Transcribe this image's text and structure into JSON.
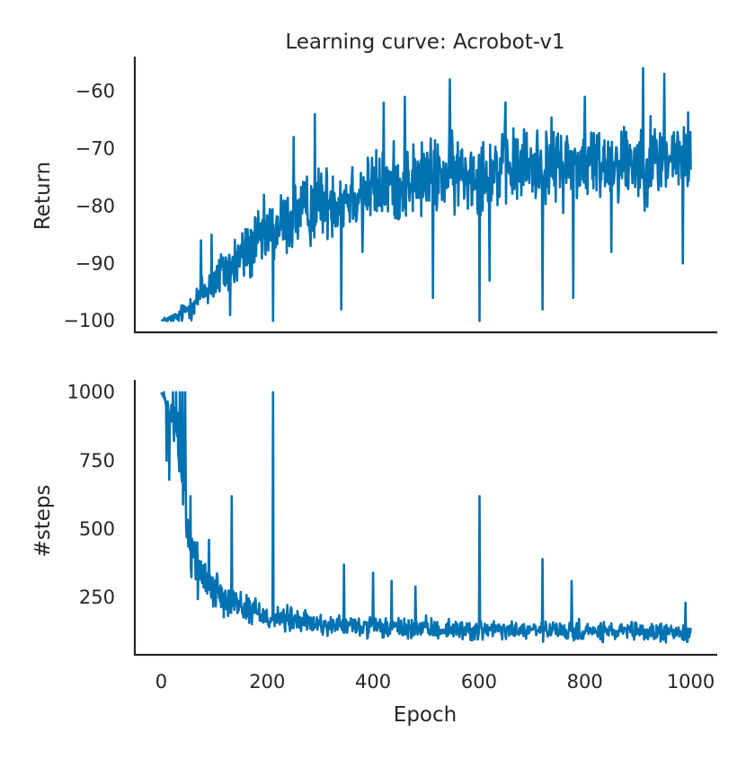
{
  "chart_data": [
    {
      "type": "line",
      "title": "Learning curve: Acrobot-v1",
      "xlabel": "",
      "ylabel": "Return",
      "xlim": [
        -50,
        1050
      ],
      "ylim": [
        -102,
        -54
      ],
      "xticks": [
        0,
        200,
        400,
        600,
        800,
        1000
      ],
      "show_xticklabels": false,
      "yticks": [
        -100,
        -90,
        -80,
        -70,
        -60
      ],
      "ytick_labels": [
        "−100",
        "−90",
        "−80",
        "−70",
        "−60"
      ],
      "grid": false,
      "color": "#0072B2",
      "trend": {
        "x": [
          0,
          30,
          60,
          100,
          150,
          200,
          250,
          300,
          400,
          500,
          600,
          700,
          800,
          900,
          1000
        ],
        "y": [
          -100,
          -99.5,
          -97,
          -93,
          -89,
          -85,
          -82,
          -79.5,
          -77,
          -75,
          -74,
          -73,
          -72.5,
          -72,
          -71.5
        ]
      },
      "noise_amplitude": {
        "x": [
          0,
          40,
          100,
          200,
          400,
          1000
        ],
        "y": [
          0.3,
          1.5,
          4,
          5.5,
          6,
          6.5
        ]
      },
      "spikes": [
        {
          "x": 75,
          "y": -86
        },
        {
          "x": 95,
          "y": -85
        },
        {
          "x": 130,
          "y": -99
        },
        {
          "x": 211,
          "y": -100
        },
        {
          "x": 250,
          "y": -68
        },
        {
          "x": 290,
          "y": -64
        },
        {
          "x": 340,
          "y": -98
        },
        {
          "x": 380,
          "y": -88
        },
        {
          "x": 420,
          "y": -62
        },
        {
          "x": 460,
          "y": -61
        },
        {
          "x": 513,
          "y": -96
        },
        {
          "x": 545,
          "y": -58
        },
        {
          "x": 601,
          "y": -100
        },
        {
          "x": 620,
          "y": -93
        },
        {
          "x": 650,
          "y": -62
        },
        {
          "x": 720,
          "y": -98
        },
        {
          "x": 778,
          "y": -96
        },
        {
          "x": 800,
          "y": -61
        },
        {
          "x": 850,
          "y": -88
        },
        {
          "x": 910,
          "y": -56
        },
        {
          "x": 950,
          "y": -57
        },
        {
          "x": 985,
          "y": -90
        }
      ],
      "n_epochs": 1000
    },
    {
      "type": "line",
      "title": "",
      "xlabel": "Epoch",
      "ylabel": "#steps",
      "xlim": [
        -50,
        1050
      ],
      "ylim": [
        40,
        1045
      ],
      "xticks": [
        0,
        200,
        400,
        600,
        800,
        1000
      ],
      "xtick_labels": [
        "0",
        "200",
        "400",
        "600",
        "800",
        "1000"
      ],
      "yticks": [
        250,
        500,
        750,
        1000
      ],
      "ytick_labels": [
        "250",
        "500",
        "750",
        "1000"
      ],
      "grid": false,
      "color": "#0072B2",
      "trend": {
        "x": [
          0,
          30,
          50,
          70,
          100,
          150,
          200,
          300,
          400,
          600,
          800,
          1000
        ],
        "y": [
          1000,
          850,
          500,
          350,
          280,
          220,
          180,
          150,
          140,
          130,
          125,
          120
        ]
      },
      "noise_amplitude": {
        "x": [
          0,
          50,
          100,
          300,
          1000
        ],
        "y": [
          0,
          120,
          60,
          35,
          30
        ]
      },
      "spikes": [
        {
          "x": 5,
          "y": 1000
        },
        {
          "x": 10,
          "y": 750
        },
        {
          "x": 15,
          "y": 680
        },
        {
          "x": 22,
          "y": 1000
        },
        {
          "x": 28,
          "y": 1000
        },
        {
          "x": 35,
          "y": 1000
        },
        {
          "x": 40,
          "y": 1000
        },
        {
          "x": 45,
          "y": 1000
        },
        {
          "x": 48,
          "y": 470
        },
        {
          "x": 55,
          "y": 620
        },
        {
          "x": 90,
          "y": 460
        },
        {
          "x": 133,
          "y": 620
        },
        {
          "x": 211,
          "y": 1000
        },
        {
          "x": 345,
          "y": 370
        },
        {
          "x": 400,
          "y": 340
        },
        {
          "x": 435,
          "y": 310
        },
        {
          "x": 480,
          "y": 290
        },
        {
          "x": 601,
          "y": 620
        },
        {
          "x": 720,
          "y": 390
        },
        {
          "x": 775,
          "y": 310
        },
        {
          "x": 990,
          "y": 230
        }
      ],
      "n_epochs": 1000
    }
  ]
}
